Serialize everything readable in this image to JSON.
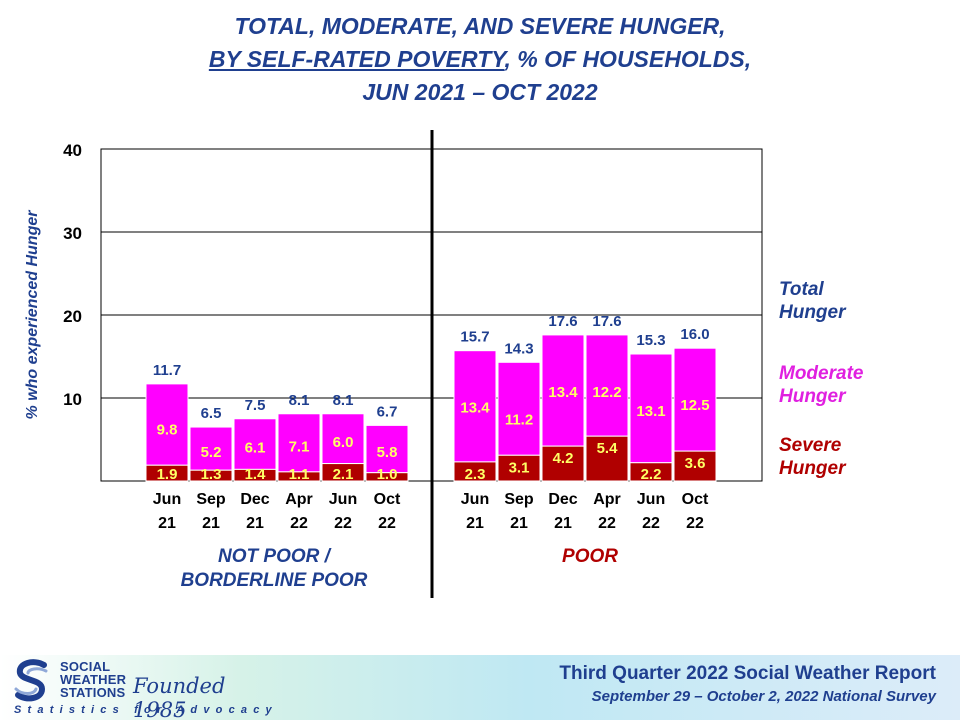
{
  "title": {
    "line1": "TOTAL, MODERATE, AND SEVERE HUNGER,",
    "line2_underlined": "BY SELF-RATED POVERTY",
    "line2_rest": ", % OF HOUSEHOLDS,",
    "line3": "JUN 2021 – OCT 2022"
  },
  "chart_data": {
    "type": "bar",
    "stacked": true,
    "ylabel": "% who experienced Hunger",
    "ylim": [
      0,
      40
    ],
    "yticks": [
      10,
      20,
      30,
      40
    ],
    "grid": true,
    "groups": [
      {
        "name": "NOT POOR / BORDERLINE POOR",
        "name_lines": [
          "NOT POOR /",
          "BORDERLINE POOR"
        ],
        "categories": [
          [
            "Jun",
            "21"
          ],
          [
            "Sep",
            "21"
          ],
          [
            "Dec",
            "21"
          ],
          [
            "Apr",
            "22"
          ],
          [
            "Jun",
            "22"
          ],
          [
            "Oct",
            "22"
          ]
        ],
        "total_labels": [
          "11.7",
          "6.5",
          "7.5",
          "8.1",
          "8.1",
          "6.7"
        ],
        "total": [
          11.7,
          6.5,
          7.5,
          8.1,
          8.1,
          6.7
        ],
        "moderate": [
          9.8,
          5.2,
          6.1,
          7.1,
          6.0,
          5.8
        ],
        "severe": [
          1.9,
          1.3,
          1.4,
          1.1,
          2.1,
          1.0
        ]
      },
      {
        "name": "POOR",
        "name_lines": [
          "POOR"
        ],
        "categories": [
          [
            "Jun",
            "21"
          ],
          [
            "Sep",
            "21"
          ],
          [
            "Dec",
            "21"
          ],
          [
            "Apr",
            "22"
          ],
          [
            "Jun",
            "22"
          ],
          [
            "Oct",
            "22"
          ]
        ],
        "total_labels": [
          "15.7",
          "14.3",
          "17.6",
          "17.6",
          "15.3",
          "16.0"
        ],
        "total": [
          15.7,
          14.3,
          17.6,
          17.6,
          15.3,
          16.0
        ],
        "moderate": [
          13.4,
          11.2,
          13.4,
          12.2,
          13.1,
          12.5
        ],
        "severe": [
          2.3,
          3.1,
          4.2,
          5.4,
          2.2,
          3.6
        ]
      }
    ],
    "legend": [
      {
        "lines": [
          "Total",
          "Hunger"
        ],
        "color": "#1f3f8f"
      },
      {
        "lines": [
          "Moderate",
          "Hunger"
        ],
        "color": "#e020e0"
      },
      {
        "lines": [
          "Severe",
          "Hunger"
        ],
        "color": "#b00000"
      }
    ],
    "colors": {
      "moderate": "#ff00ff",
      "severe": "#b00000",
      "total_label": "#1f3f8f",
      "segment_label": "#ffff66",
      "axis_text": "#000000"
    }
  },
  "footer": {
    "logo_lines": [
      "SOCIAL",
      "WEATHER",
      "STATIONS"
    ],
    "founded": "Founded 1985",
    "tagline": "Statistics for Advocacy",
    "report_title": "Third Quarter 2022 Social Weather Report",
    "survey": "September 29 – October 2, 2022 National Survey"
  }
}
